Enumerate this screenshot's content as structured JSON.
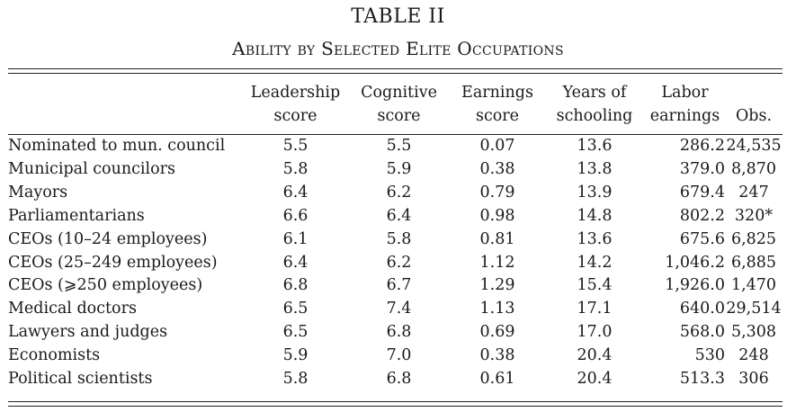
{
  "table": {
    "title": "TABLE II",
    "caption": "Ability by Selected Elite Occupations",
    "columns": [
      {
        "line1": "",
        "line2": ""
      },
      {
        "line1": "Leadership",
        "line2": "score"
      },
      {
        "line1": "Cognitive",
        "line2": "score"
      },
      {
        "line1": "Earnings",
        "line2": "score"
      },
      {
        "line1": "Years of",
        "line2": "schooling"
      },
      {
        "line1": "Labor",
        "line2": "earnings"
      },
      {
        "line1": "",
        "line2": "Obs."
      }
    ],
    "rows": [
      {
        "label": "Nominated to mun. council",
        "leadership": "5.5",
        "cognitive": "5.5",
        "earnings_score": "0.07",
        "schooling": "13.6",
        "labor_earnings": "286.2",
        "obs": "24,535"
      },
      {
        "label": "Municipal councilors",
        "leadership": "5.8",
        "cognitive": "5.9",
        "earnings_score": "0.38",
        "schooling": "13.8",
        "labor_earnings": "379.0",
        "obs": "8,870"
      },
      {
        "label": "Mayors",
        "leadership": "6.4",
        "cognitive": "6.2",
        "earnings_score": "0.79",
        "schooling": "13.9",
        "labor_earnings": "679.4",
        "obs": "247"
      },
      {
        "label": "Parliamentarians",
        "leadership": "6.6",
        "cognitive": "6.4",
        "earnings_score": "0.98",
        "schooling": "14.8",
        "labor_earnings": "802.2",
        "obs": "320*"
      },
      {
        "label": "CEOs (10–24 employees)",
        "leadership": "6.1",
        "cognitive": "5.8",
        "earnings_score": "0.81",
        "schooling": "13.6",
        "labor_earnings": "675.6",
        "obs": "6,825"
      },
      {
        "label": "CEOs (25–249 employees)",
        "leadership": "6.4",
        "cognitive": "6.2",
        "earnings_score": "1.12",
        "schooling": "14.2",
        "labor_earnings": "1,046.2",
        "obs": "6,885"
      },
      {
        "label": "CEOs (⩾250 employees)",
        "leadership": "6.8",
        "cognitive": "6.7",
        "earnings_score": "1.29",
        "schooling": "15.4",
        "labor_earnings": "1,926.0",
        "obs": "1,470"
      },
      {
        "label": "Medical doctors",
        "leadership": "6.5",
        "cognitive": "7.4",
        "earnings_score": "1.13",
        "schooling": "17.1",
        "labor_earnings": "640.0",
        "obs": "29,514"
      },
      {
        "label": "Lawyers and judges",
        "leadership": "6.5",
        "cognitive": "6.8",
        "earnings_score": "0.69",
        "schooling": "17.0",
        "labor_earnings": "568.0",
        "obs": "5,308"
      },
      {
        "label": "Economists",
        "leadership": "5.9",
        "cognitive": "7.0",
        "earnings_score": "0.38",
        "schooling": "20.4",
        "labor_earnings": "530",
        "obs": "248"
      },
      {
        "label": "Political scientists",
        "leadership": "5.8",
        "cognitive": "6.8",
        "earnings_score": "0.61",
        "schooling": "20.4",
        "labor_earnings": "513.3",
        "obs": "306"
      }
    ]
  }
}
